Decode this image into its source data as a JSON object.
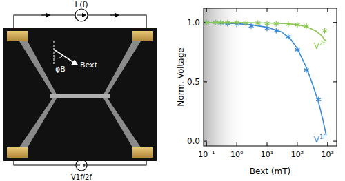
{
  "chart_data": {
    "type": "scatter",
    "log": "x",
    "x_label": "Bext (mT)",
    "y_label": "Norm. Voltage",
    "xlim": [
      0.08,
      2000
    ],
    "ylim": [
      -0.04,
      1.12
    ],
    "xticks": [
      {
        "value": 0.1,
        "label": "10⁻¹"
      },
      {
        "value": 1,
        "label": "10⁰"
      },
      {
        "value": 10,
        "label": "10¹"
      },
      {
        "value": 100,
        "label": "10²"
      },
      {
        "value": 1000,
        "label": "10³"
      }
    ],
    "yticks": [
      {
        "value": 0,
        "label": "0.0"
      },
      {
        "value": 0.5,
        "label": "0.5"
      },
      {
        "value": 1,
        "label": "1.0"
      }
    ],
    "grid": false,
    "series": [
      {
        "name": "V1f",
        "color": "#3b8ad6",
        "marker": "asterisk",
        "x": [
          0.1,
          0.2,
          0.3,
          0.5,
          1,
          3,
          10,
          20,
          50,
          100,
          200,
          500
        ],
        "values": [
          1.0,
          1.0,
          0.995,
          0.99,
          0.985,
          0.97,
          0.95,
          0.93,
          0.88,
          0.77,
          0.6,
          0.35
        ],
        "fit": {
          "x": [
            0.1,
            1,
            3,
            10,
            30,
            60,
            100,
            200,
            300,
            500,
            700,
            900
          ],
          "values": [
            1.0,
            0.99,
            0.98,
            0.96,
            0.92,
            0.86,
            0.78,
            0.62,
            0.5,
            0.33,
            0.18,
            0.05
          ]
        }
      },
      {
        "name": "V2f",
        "color": "#8cc850",
        "marker": "asterisk",
        "x": [
          0.1,
          0.2,
          0.3,
          0.5,
          1,
          2,
          5,
          10,
          20,
          50,
          100,
          200,
          800
        ],
        "values": [
          1.0,
          1.0,
          1.0,
          1.0,
          1.0,
          0.995,
          0.995,
          0.99,
          0.99,
          0.985,
          0.98,
          0.97,
          0.93
        ],
        "fit": {
          "x": [
            0.1,
            1,
            10,
            50,
            100,
            200,
            400,
            600,
            900
          ],
          "values": [
            1.0,
            1.0,
            0.995,
            0.99,
            0.98,
            0.965,
            0.93,
            0.895,
            0.84
          ]
        }
      }
    ]
  },
  "diagram": {
    "source_label": "I (f)",
    "angle_label": "φB",
    "field_label": "Bext",
    "meter_label": "V1f/2f"
  }
}
